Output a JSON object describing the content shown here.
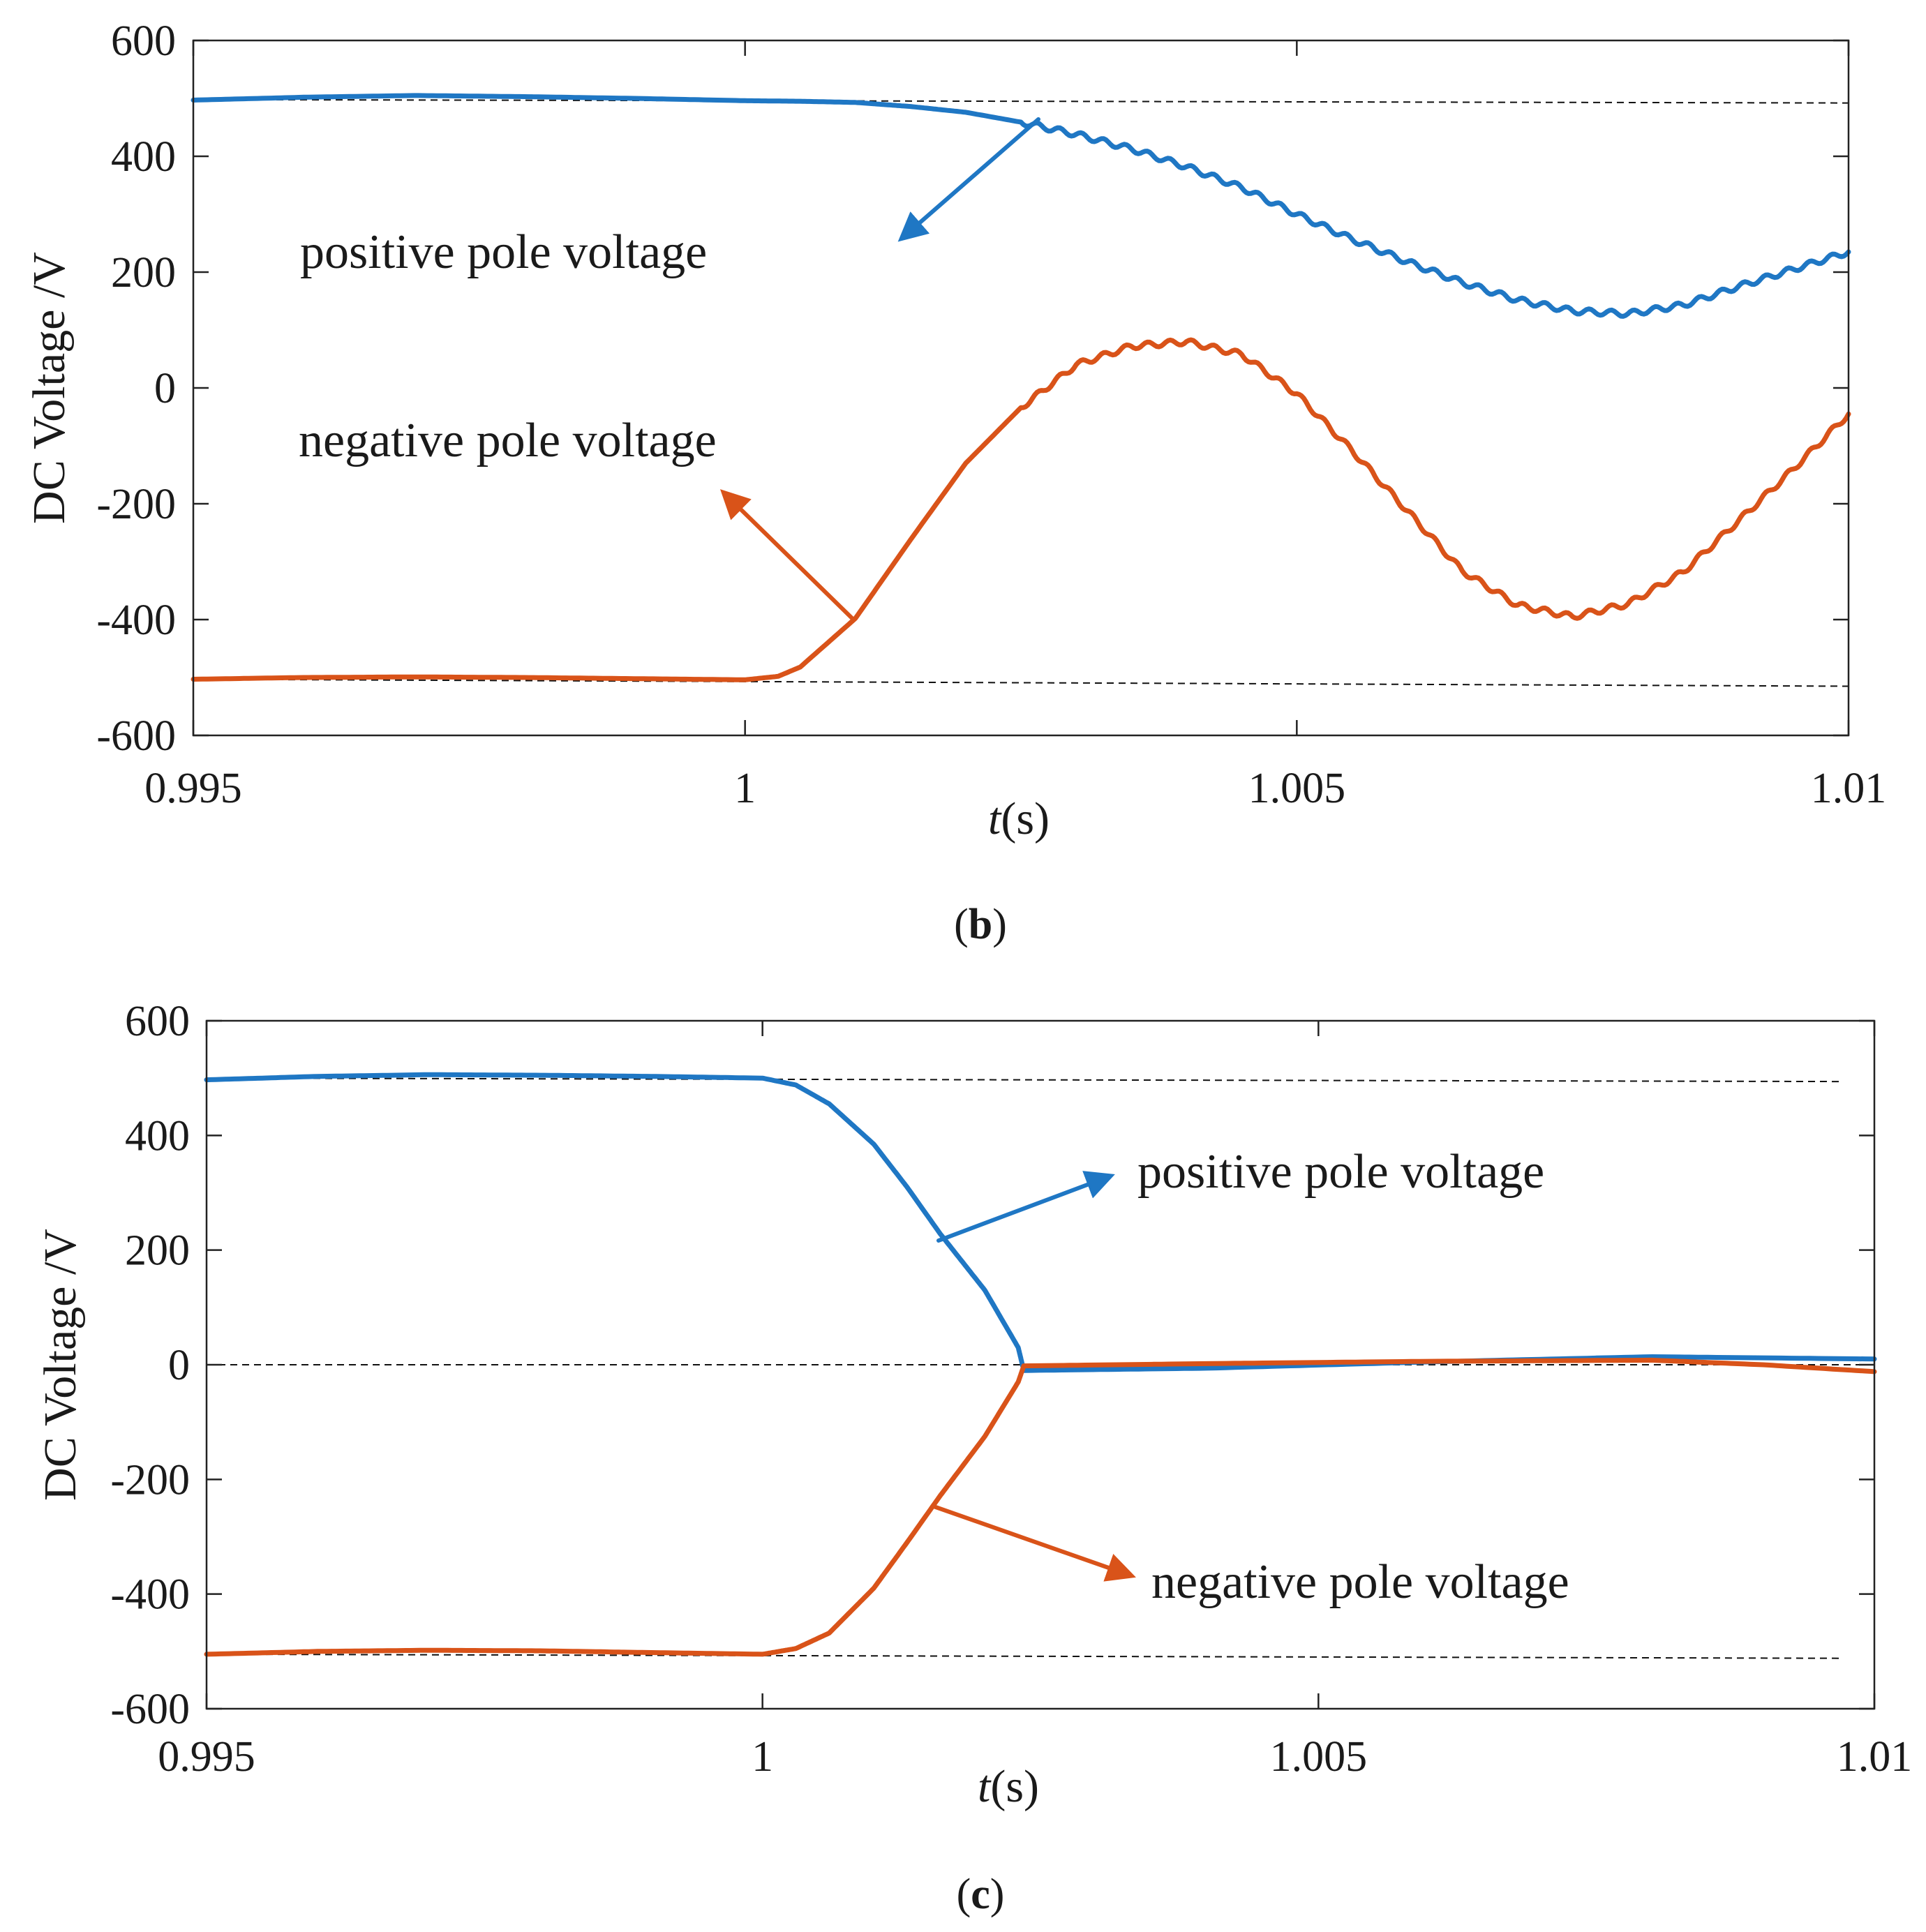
{
  "chart_data": [
    {
      "id": "b",
      "type": "line",
      "caption": {
        "open": "(",
        "label": "b",
        "close": ")"
      },
      "xlabel": {
        "var": "t",
        "unit": "(s)"
      },
      "ylabel": "DC Voltage /V",
      "xlim": [
        0.995,
        1.01
      ],
      "ylim": [
        -600,
        600
      ],
      "xticks": [
        0.995,
        1.0,
        1.005,
        1.01
      ],
      "xtick_labels": [
        "0.995",
        "1",
        "1.005",
        "1.01"
      ],
      "yticks": [
        600,
        400,
        200,
        0,
        -200,
        -400,
        -600
      ],
      "ytick_labels": [
        "600",
        "400",
        "200",
        "0",
        "-200",
        "-400",
        "-600"
      ],
      "reference_lines": [
        {
          "name": "positive-reference",
          "x": [
            0.995,
            1.01
          ],
          "y": [
            498,
            492
          ]
        },
        {
          "name": "negative-reference",
          "x": [
            0.995,
            1.01
          ],
          "y": [
            -503,
            -515
          ]
        }
      ],
      "series": [
        {
          "name": "positive pole voltage",
          "color": "#1f77c4",
          "x": [
            0.995,
            0.996,
            0.997,
            0.998,
            0.999,
            1.0,
            1.0005,
            1.001,
            1.0015,
            1.002,
            1.0025,
            1.003,
            1.0035,
            1.004,
            1.0045,
            1.005,
            1.0055,
            1.006,
            1.0065,
            1.007,
            1.0075,
            1.008,
            1.0085,
            1.009,
            1.0095,
            1.01
          ],
          "y": [
            497,
            502,
            505,
            503,
            500,
            496,
            495,
            493,
            486,
            476,
            459,
            438,
            413,
            382,
            346,
            300,
            257,
            218,
            182,
            152,
            133,
            128,
            143,
            175,
            205,
            235
          ]
        },
        {
          "name": "negative pole voltage",
          "color": "#d95319",
          "x": [
            0.995,
            0.996,
            0.997,
            0.998,
            0.999,
            1.0,
            1.0003,
            1.0005,
            1.001,
            1.0015,
            1.002,
            1.0025,
            1.003,
            1.0035,
            1.004,
            1.0045,
            1.005,
            1.0055,
            1.006,
            1.0065,
            1.007,
            1.0075,
            1.008,
            1.0085,
            1.009,
            1.0095,
            1.01
          ],
          "y": [
            -503,
            -500,
            -499,
            -500,
            -502,
            -504,
            -498,
            -482,
            -398,
            -262,
            -130,
            -34,
            40,
            72,
            80,
            58,
            -10,
            -108,
            -212,
            -316,
            -375,
            -395,
            -373,
            -318,
            -230,
            -140,
            -45
          ]
        }
      ],
      "annotations": [
        {
          "text": "positive pole voltage",
          "series": "positive pole voltage"
        },
        {
          "text": "negative pole voltage",
          "series": "negative pole voltage"
        }
      ]
    },
    {
      "id": "c",
      "type": "line",
      "caption": {
        "open": "(",
        "label": "c",
        "close": ")"
      },
      "xlabel": {
        "var": "t",
        "unit": "(s)"
      },
      "ylabel": "DC Voltage /V",
      "xlim": [
        0.995,
        1.01
      ],
      "ylim": [
        -600,
        600
      ],
      "xticks": [
        0.995,
        1.0,
        1.005,
        1.01
      ],
      "xtick_labels": [
        "0.995",
        "1",
        "1.005",
        "1.01"
      ],
      "yticks": [
        600,
        400,
        200,
        0,
        -200,
        -400,
        -600
      ],
      "ytick_labels": [
        "600",
        "400",
        "200",
        "0",
        "-200",
        "-400",
        "-600"
      ],
      "reference_lines": [
        {
          "name": "positive-reference",
          "x": [
            0.995,
            1.0097
          ],
          "y": [
            500,
            494
          ]
        },
        {
          "name": "zero-reference",
          "x": [
            0.995,
            1.01
          ],
          "y": [
            0,
            0
          ]
        },
        {
          "name": "negative-reference",
          "x": [
            0.995,
            1.0097
          ],
          "y": [
            -505,
            -512
          ]
        }
      ],
      "series": [
        {
          "name": "positive pole voltage",
          "color": "#1f77c4",
          "x": [
            0.995,
            0.996,
            0.997,
            0.998,
            0.999,
            1.0,
            1.0003,
            1.0006,
            1.001,
            1.0013,
            1.0016,
            1.002,
            1.0023,
            1.00235,
            1.004,
            1.006,
            1.008,
            1.01
          ],
          "y": [
            497,
            503,
            506,
            505,
            503,
            500,
            488,
            455,
            385,
            310,
            228,
            130,
            30,
            -10,
            -6,
            5,
            14,
            10
          ]
        },
        {
          "name": "negative pole voltage",
          "color": "#d95319",
          "x": [
            0.995,
            0.996,
            0.997,
            0.998,
            0.999,
            1.0,
            1.0003,
            1.0006,
            1.001,
            1.0013,
            1.0016,
            1.002,
            1.0023,
            1.00235,
            1.004,
            1.006,
            1.008,
            1.009,
            1.01
          ],
          "y": [
            -505,
            -500,
            -498,
            -499,
            -502,
            -505,
            -495,
            -468,
            -390,
            -310,
            -228,
            -125,
            -30,
            -2,
            2,
            6,
            8,
            0,
            -12
          ]
        }
      ],
      "annotations": [
        {
          "text": "positive pole voltage",
          "series": "positive pole voltage"
        },
        {
          "text": "negative pole voltage",
          "series": "negative pole voltage"
        }
      ]
    }
  ]
}
